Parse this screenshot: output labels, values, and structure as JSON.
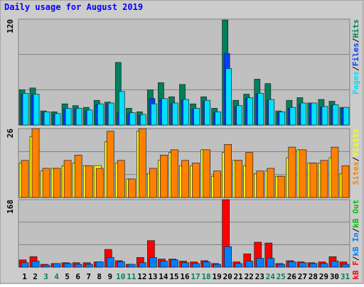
{
  "title": "Daily usage for August 2019",
  "categories": [
    "1",
    "2",
    "3",
    "4",
    "5",
    "6",
    "7",
    "8",
    "9",
    "10",
    "11",
    "12",
    "13",
    "14",
    "15",
    "16",
    "17",
    "18",
    "19",
    "20",
    "21",
    "22",
    "23",
    "24",
    "25",
    "26",
    "27",
    "28",
    "29",
    "30",
    "31"
  ],
  "weekend_indices": [
    2,
    3,
    9,
    10,
    16,
    17,
    23,
    24,
    30
  ],
  "weekday_color": "#000000",
  "weekend_color": "#00805c",
  "legend_separator": "/",
  "chart_data": [
    {
      "type": "bar",
      "ylim": [
        0,
        120
      ],
      "yticks": [
        120
      ],
      "grid_lines": [
        40,
        80
      ],
      "reverse_draw": true,
      "series": [
        {
          "name": "Pages",
          "color": "#00e0ff",
          "values": [
            36,
            35,
            15,
            13,
            19,
            19,
            17,
            24,
            25,
            38,
            14,
            12,
            24,
            30,
            25,
            29,
            19,
            28,
            15,
            64,
            22,
            31,
            36,
            29,
            15,
            20,
            25,
            25,
            21,
            23,
            20
          ]
        },
        {
          "name": "Files",
          "color": "#0040ff",
          "values": [
            35,
            34,
            14,
            12,
            18,
            18,
            16,
            23,
            24,
            14,
            13,
            11,
            30,
            29,
            24,
            28,
            18,
            27,
            14,
            81,
            21,
            30,
            35,
            28,
            14,
            19,
            24,
            24,
            20,
            22,
            19
          ]
        },
        {
          "name": "Hits",
          "color": "#00805c",
          "values": [
            40,
            42,
            16,
            15,
            24,
            22,
            20,
            28,
            26,
            71,
            19,
            15,
            40,
            48,
            32,
            46,
            24,
            32,
            19,
            119,
            28,
            35,
            52,
            47,
            16,
            28,
            31,
            25,
            29,
            27,
            20
          ]
        }
      ]
    },
    {
      "type": "bar",
      "ylim": [
        0,
        26
      ],
      "yticks": [
        26
      ],
      "grid_lines": [
        8.67,
        17.33
      ],
      "reverse_draw": true,
      "series": [
        {
          "name": "Sites",
          "color": "#ff8000",
          "values": [
            14,
            26,
            11,
            11,
            14,
            16,
            12,
            11,
            25,
            14,
            7,
            26,
            11,
            16,
            18,
            14,
            13,
            18,
            10,
            20,
            14,
            17,
            10,
            11,
            8,
            19,
            18,
            13,
            14,
            19,
            12
          ]
        },
        {
          "name": "Visits",
          "color": "#ffff00",
          "values": [
            13,
            23,
            10,
            11,
            12,
            13,
            12,
            12,
            21,
            13,
            7,
            25,
            9,
            14,
            17,
            12,
            12,
            18,
            8,
            17,
            14,
            12,
            9,
            10,
            8,
            15,
            18,
            13,
            13,
            15,
            9
          ]
        }
      ]
    },
    {
      "type": "bar",
      "ylim": [
        0,
        168
      ],
      "yticks": [
        168
      ],
      "grid_lines": [
        56,
        112
      ],
      "reverse_draw": false,
      "series": [
        {
          "name": "kB F",
          "color": "#ff0000",
          "values": [
            18,
            26,
            7,
            9,
            11,
            11,
            11,
            13,
            44,
            16,
            7,
            24,
            66,
            20,
            20,
            15,
            13,
            16,
            9,
            168,
            13,
            33,
            62,
            60,
            9,
            16,
            13,
            11,
            13,
            26,
            13
          ]
        },
        {
          "name": "kB In",
          "color": "#0080ff",
          "values": [
            11,
            15,
            5,
            9,
            9,
            7,
            7,
            13,
            24,
            13,
            7,
            11,
            24,
            15,
            18,
            11,
            9,
            13,
            7,
            51,
            9,
            15,
            22,
            22,
            7,
            13,
            11,
            9,
            9,
            15,
            7
          ]
        },
        {
          "name": "kB Out",
          "color": "#00c000"
        }
      ]
    }
  ]
}
